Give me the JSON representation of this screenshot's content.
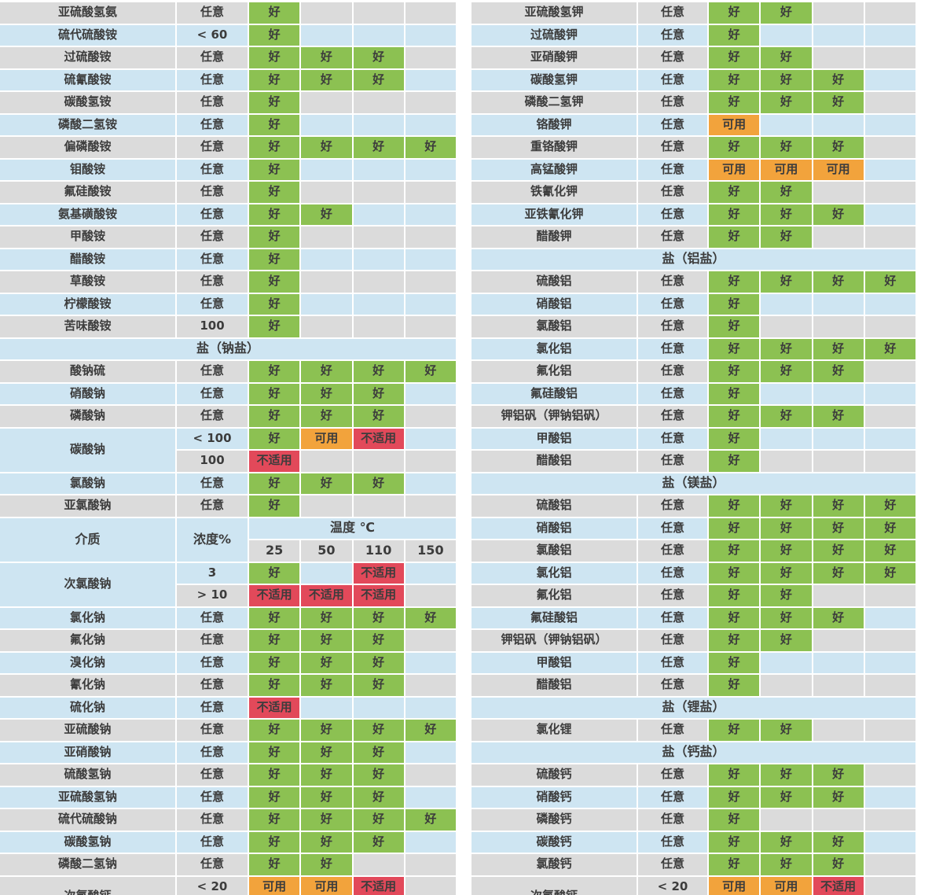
{
  "colors": {
    "good": "#8cc152",
    "usable": "#f2a33c",
    "unsuitable": "#e2495a",
    "row_gray": "#dbdbdb",
    "row_blue": "#cee5f2",
    "text": "#3c3c3c"
  },
  "legend": {
    "good_label": "好",
    "usable_label": "可用",
    "unsuitable_label": "不适用"
  },
  "hdr": {
    "medium": "介质",
    "conc": "浓度%",
    "temp": "温度 ℃",
    "temps": [
      "25",
      "50",
      "110",
      "150"
    ]
  },
  "left": {
    "rows": [
      {
        "name": "亚硫酸氢氨",
        "conc": "任意",
        "r": [
          "好",
          "",
          "",
          ""
        ],
        "bg": "g"
      },
      {
        "name": "硫代硫酸铵",
        "conc": "< 60",
        "r": [
          "好",
          "",
          "",
          ""
        ],
        "bg": "b"
      },
      {
        "name": "过硫酸铵",
        "conc": "任意",
        "r": [
          "好",
          "好",
          "好",
          ""
        ],
        "bg": "g"
      },
      {
        "name": "硫氰酸铵",
        "conc": "任意",
        "r": [
          "好",
          "好",
          "好",
          ""
        ],
        "bg": "b"
      },
      {
        "name": "碳酸氢铵",
        "conc": "任意",
        "r": [
          "好",
          "",
          "",
          ""
        ],
        "bg": "g"
      },
      {
        "name": "磷酸二氢铵",
        "conc": "任意",
        "r": [
          "好",
          "",
          "",
          ""
        ],
        "bg": "b"
      },
      {
        "name": "偏磷酸铵",
        "conc": "任意",
        "r": [
          "好",
          "好",
          "好",
          "好"
        ],
        "bg": "g"
      },
      {
        "name": "钼酸铵",
        "conc": "任意",
        "r": [
          "好",
          "",
          "",
          ""
        ],
        "bg": "b"
      },
      {
        "name": "氟硅酸铵",
        "conc": "任意",
        "r": [
          "好",
          "",
          "",
          ""
        ],
        "bg": "g"
      },
      {
        "name": "氨基磺酸铵",
        "conc": "任意",
        "r": [
          "好",
          "好",
          "",
          ""
        ],
        "bg": "b"
      },
      {
        "name": "甲酸铵",
        "conc": "任意",
        "r": [
          "好",
          "",
          "",
          ""
        ],
        "bg": "g"
      },
      {
        "name": "醋酸铵",
        "conc": "任意",
        "r": [
          "好",
          "",
          "",
          ""
        ],
        "bg": "b"
      },
      {
        "name": "草酸铵",
        "conc": "任意",
        "r": [
          "好",
          "",
          "",
          ""
        ],
        "bg": "g"
      },
      {
        "name": "柠檬酸铵",
        "conc": "任意",
        "r": [
          "好",
          "",
          "",
          ""
        ],
        "bg": "b"
      },
      {
        "name": "苦味酸铵",
        "conc": "100",
        "r": [
          "好",
          "",
          "",
          ""
        ],
        "bg": "g"
      },
      {
        "section": "盐（钠盐）",
        "bg": "b"
      },
      {
        "name": "酸钠硫",
        "conc": "任意",
        "r": [
          "好",
          "好",
          "好",
          "好"
        ],
        "bg": "g"
      },
      {
        "name": "硝酸钠",
        "conc": "任意",
        "r": [
          "好",
          "好",
          "好",
          ""
        ],
        "bg": "b"
      },
      {
        "name": "磷酸钠",
        "conc": "任意",
        "r": [
          "好",
          "好",
          "好",
          ""
        ],
        "bg": "g"
      },
      {
        "name": "碳酸钠",
        "span": 2,
        "conc": "< 100",
        "r": [
          "好",
          "可用",
          "不适用",
          ""
        ],
        "bg": "b"
      },
      {
        "noname": 1,
        "conc": "100",
        "r": [
          "不适用",
          "",
          "",
          ""
        ],
        "bg": "g"
      },
      {
        "name": "氯酸钠",
        "conc": "任意",
        "r": [
          "好",
          "好",
          "好",
          ""
        ],
        "bg": "b"
      },
      {
        "name": "亚氯酸钠",
        "conc": "任意",
        "r": [
          "好",
          "",
          "",
          ""
        ],
        "bg": "g"
      },
      {
        "header": 1
      },
      {
        "name": "次氯酸钠",
        "span": 2,
        "conc": "3",
        "r": [
          "好",
          "",
          "不适用",
          ""
        ],
        "bg": "b"
      },
      {
        "noname": 1,
        "conc": "> 10",
        "r": [
          "不适用",
          "不适用",
          "不适用",
          ""
        ],
        "bg": "g"
      },
      {
        "name": "氯化钠",
        "conc": "任意",
        "r": [
          "好",
          "好",
          "好",
          "好"
        ],
        "bg": "b"
      },
      {
        "name": "氟化钠",
        "conc": "任意",
        "r": [
          "好",
          "好",
          "好",
          ""
        ],
        "bg": "g"
      },
      {
        "name": "溴化钠",
        "conc": "任意",
        "r": [
          "好",
          "好",
          "好",
          ""
        ],
        "bg": "b"
      },
      {
        "name": "氰化钠",
        "conc": "任意",
        "r": [
          "好",
          "好",
          "好",
          ""
        ],
        "bg": "g"
      },
      {
        "name": "硫化钠",
        "conc": "任意",
        "r": [
          "不适用",
          "",
          "",
          ""
        ],
        "bg": "b"
      },
      {
        "name": "亚硫酸钠",
        "conc": "任意",
        "r": [
          "好",
          "好",
          "好",
          "好"
        ],
        "bg": "g"
      },
      {
        "name": "亚硝酸钠",
        "conc": "任意",
        "r": [
          "好",
          "好",
          "好",
          ""
        ],
        "bg": "b"
      },
      {
        "name": "硫酸氢钠",
        "conc": "任意",
        "r": [
          "好",
          "好",
          "好",
          ""
        ],
        "bg": "g"
      },
      {
        "name": "亚硫酸氢钠",
        "conc": "任意",
        "r": [
          "好",
          "好",
          "好",
          ""
        ],
        "bg": "b"
      },
      {
        "name": "硫代硫酸钠",
        "conc": "任意",
        "r": [
          "好",
          "好",
          "好",
          "好"
        ],
        "bg": "g"
      },
      {
        "name": "碳酸氢钠",
        "conc": "任意",
        "r": [
          "好",
          "好",
          "好",
          ""
        ],
        "bg": "b"
      },
      {
        "name": "磷酸二氢钠",
        "conc": "任意",
        "r": [
          "好",
          "好",
          "",
          ""
        ],
        "bg": "g"
      },
      {
        "name": "次氯酸钙",
        "conc": "< 20",
        "r": [
          "可用",
          "可用",
          "不适用",
          ""
        ],
        "bg": "g",
        "low": 1
      }
    ]
  },
  "right": {
    "rows": [
      {
        "name": "亚硫酸氢钾",
        "conc": "任意",
        "r": [
          "好",
          "好",
          "",
          ""
        ],
        "bg": "g"
      },
      {
        "name": "过硫酸钾",
        "conc": "任意",
        "r": [
          "好",
          "",
          "",
          ""
        ],
        "bg": "b"
      },
      {
        "name": "亚硝酸钾",
        "conc": "任意",
        "r": [
          "好",
          "好",
          "",
          ""
        ],
        "bg": "g"
      },
      {
        "name": "碳酸氢钾",
        "conc": "任意",
        "r": [
          "好",
          "好",
          "好",
          ""
        ],
        "bg": "b"
      },
      {
        "name": "磷酸二氢钾",
        "conc": "任意",
        "r": [
          "好",
          "好",
          "好",
          ""
        ],
        "bg": "g"
      },
      {
        "name": "铬酸钾",
        "conc": "任意",
        "r": [
          "可用",
          "",
          "",
          ""
        ],
        "bg": "b"
      },
      {
        "name": "重铬酸钾",
        "conc": "任意",
        "r": [
          "好",
          "好",
          "好",
          ""
        ],
        "bg": "g"
      },
      {
        "name": "高锰酸钾",
        "conc": "任意",
        "r": [
          "可用",
          "可用",
          "可用",
          ""
        ],
        "bg": "b"
      },
      {
        "name": "铁氰化钾",
        "conc": "任意",
        "r": [
          "好",
          "好",
          "",
          ""
        ],
        "bg": "g"
      },
      {
        "name": "亚铁氰化钾",
        "conc": "任意",
        "r": [
          "好",
          "好",
          "好",
          ""
        ],
        "bg": "b"
      },
      {
        "name": "醋酸钾",
        "conc": "任意",
        "r": [
          "好",
          "好",
          "",
          ""
        ],
        "bg": "g"
      },
      {
        "section": "盐（铝盐）",
        "bg": "b"
      },
      {
        "name": "硫酸铝",
        "conc": "任意",
        "r": [
          "好",
          "好",
          "好",
          "好"
        ],
        "bg": "g"
      },
      {
        "name": "硝酸铝",
        "conc": "任意",
        "r": [
          "好",
          "",
          "",
          ""
        ],
        "bg": "b"
      },
      {
        "name": "氯酸铝",
        "conc": "任意",
        "r": [
          "好",
          "",
          "",
          ""
        ],
        "bg": "g"
      },
      {
        "name": "氯化铝",
        "conc": "任意",
        "r": [
          "好",
          "好",
          "好",
          "好"
        ],
        "bg": "b"
      },
      {
        "name": "氟化铝",
        "conc": "任意",
        "r": [
          "好",
          "好",
          "好",
          ""
        ],
        "bg": "g"
      },
      {
        "name": "氟硅酸铝",
        "conc": "任意",
        "r": [
          "好",
          "",
          "",
          ""
        ],
        "bg": "b"
      },
      {
        "name": "钾铝矾（钾钠铝矾）",
        "conc": "任意",
        "r": [
          "好",
          "好",
          "好",
          ""
        ],
        "bg": "g"
      },
      {
        "name": "甲酸铝",
        "conc": "任意",
        "r": [
          "好",
          "",
          "",
          ""
        ],
        "bg": "b"
      },
      {
        "name": "醋酸铝",
        "conc": "任意",
        "r": [
          "好",
          "",
          "",
          ""
        ],
        "bg": "g"
      },
      {
        "section": "盐（镁盐）",
        "bg": "b"
      },
      {
        "name": "硫酸铝",
        "conc": "任意",
        "r": [
          "好",
          "好",
          "好",
          "好"
        ],
        "bg": "g"
      },
      {
        "name": "硝酸铝",
        "conc": "任意",
        "r": [
          "好",
          "好",
          "好",
          "好"
        ],
        "bg": "b"
      },
      {
        "name": "氯酸铝",
        "conc": "任意",
        "r": [
          "好",
          "好",
          "好",
          "好"
        ],
        "bg": "g"
      },
      {
        "name": "氯化铝",
        "conc": "任意",
        "r": [
          "好",
          "好",
          "好",
          "好"
        ],
        "bg": "b"
      },
      {
        "name": "氟化铝",
        "conc": "任意",
        "r": [
          "好",
          "好",
          "",
          ""
        ],
        "bg": "g"
      },
      {
        "name": "氟硅酸铝",
        "conc": "任意",
        "r": [
          "好",
          "好",
          "好",
          ""
        ],
        "bg": "b"
      },
      {
        "name": "钾铝矾（钾钠铝矾）",
        "conc": "任意",
        "r": [
          "好",
          "好",
          "",
          ""
        ],
        "bg": "g"
      },
      {
        "name": "甲酸铝",
        "conc": "任意",
        "r": [
          "好",
          "",
          "",
          ""
        ],
        "bg": "b"
      },
      {
        "name": "醋酸铝",
        "conc": "任意",
        "r": [
          "好",
          "",
          "",
          ""
        ],
        "bg": "g"
      },
      {
        "section": "盐（锂盐）",
        "bg": "b"
      },
      {
        "name": "氯化锂",
        "conc": "任意",
        "r": [
          "好",
          "好",
          "",
          ""
        ],
        "bg": "g"
      },
      {
        "section": "盐（钙盐）",
        "bg": "b"
      },
      {
        "name": "硫酸钙",
        "conc": "任意",
        "r": [
          "好",
          "好",
          "好",
          ""
        ],
        "bg": "g"
      },
      {
        "name": "硝酸钙",
        "conc": "任意",
        "r": [
          "好",
          "好",
          "好",
          ""
        ],
        "bg": "b"
      },
      {
        "name": "磷酸钙",
        "conc": "任意",
        "r": [
          "好",
          "",
          "",
          ""
        ],
        "bg": "g"
      },
      {
        "name": "碳酸钙",
        "conc": "任意",
        "r": [
          "好",
          "好",
          "好",
          ""
        ],
        "bg": "b"
      },
      {
        "name": "氯酸钙",
        "conc": "任意",
        "r": [
          "好",
          "好",
          "好",
          ""
        ],
        "bg": "g"
      },
      {
        "name": "次氯酸钙",
        "conc": "< 20",
        "r": [
          "可用",
          "可用",
          "不适用",
          ""
        ],
        "bg": "g",
        "low": 1
      }
    ]
  }
}
